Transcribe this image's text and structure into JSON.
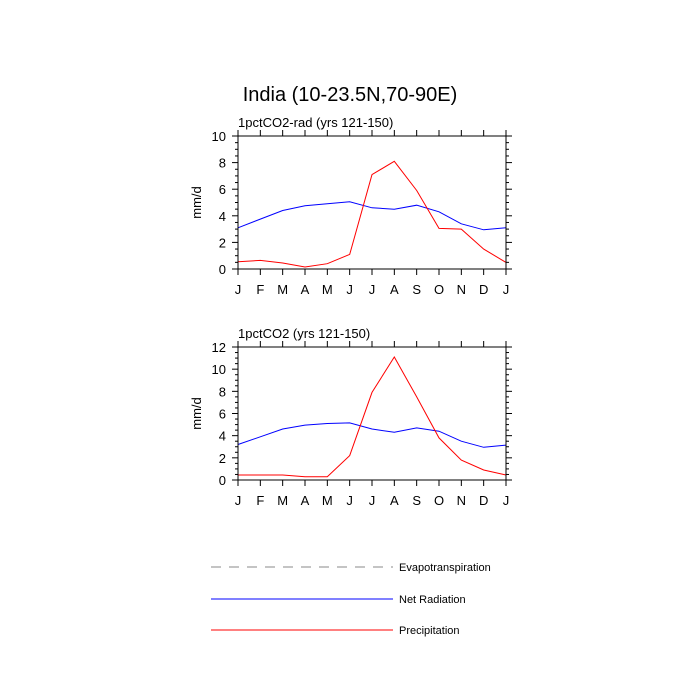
{
  "title": "India (10-23.5N,70-90E)",
  "chart_data": [
    {
      "type": "line",
      "title": "1pctCO2-rad (yrs 121-150)",
      "ylabel": "mm/d",
      "xlabel": "",
      "ylim": [
        0,
        10
      ],
      "yticks": [
        0,
        2,
        4,
        6,
        8,
        10
      ],
      "categories": [
        "J",
        "F",
        "M",
        "A",
        "M",
        "J",
        "J",
        "A",
        "S",
        "O",
        "N",
        "D",
        "J"
      ],
      "series": [
        {
          "name": "Net Radiation",
          "color": "#0000ff",
          "values": [
            3.1,
            3.75,
            4.4,
            4.75,
            4.9,
            5.05,
            4.6,
            4.5,
            4.8,
            4.3,
            3.4,
            2.95,
            3.1
          ]
        },
        {
          "name": "Precipitation",
          "color": "#ff0000",
          "values": [
            0.55,
            0.65,
            0.45,
            0.15,
            0.4,
            1.1,
            7.1,
            8.1,
            5.9,
            3.05,
            3.0,
            1.5,
            0.5
          ]
        }
      ]
    },
    {
      "type": "line",
      "title": "1pctCO2 (yrs 121-150)",
      "ylabel": "mm/d",
      "xlabel": "",
      "ylim": [
        0,
        12
      ],
      "yticks": [
        0,
        2,
        4,
        6,
        8,
        10,
        12
      ],
      "categories": [
        "J",
        "F",
        "M",
        "A",
        "M",
        "J",
        "J",
        "A",
        "S",
        "O",
        "N",
        "D",
        "J"
      ],
      "series": [
        {
          "name": "Net Radiation",
          "color": "#0000ff",
          "values": [
            3.2,
            3.9,
            4.6,
            4.95,
            5.1,
            5.15,
            4.6,
            4.3,
            4.7,
            4.4,
            3.5,
            2.95,
            3.15
          ]
        },
        {
          "name": "Precipitation",
          "color": "#ff0000",
          "values": [
            0.45,
            0.45,
            0.45,
            0.3,
            0.3,
            2.2,
            7.9,
            11.1,
            7.5,
            3.8,
            1.8,
            0.9,
            0.45
          ]
        }
      ]
    }
  ],
  "legend": [
    {
      "label": "Evapotranspiration",
      "color": "#888888",
      "style": "dashed"
    },
    {
      "label": "Net Radiation",
      "color": "#0000ff",
      "style": "solid"
    },
    {
      "label": "Precipitation",
      "color": "#ff0000",
      "style": "solid"
    }
  ]
}
